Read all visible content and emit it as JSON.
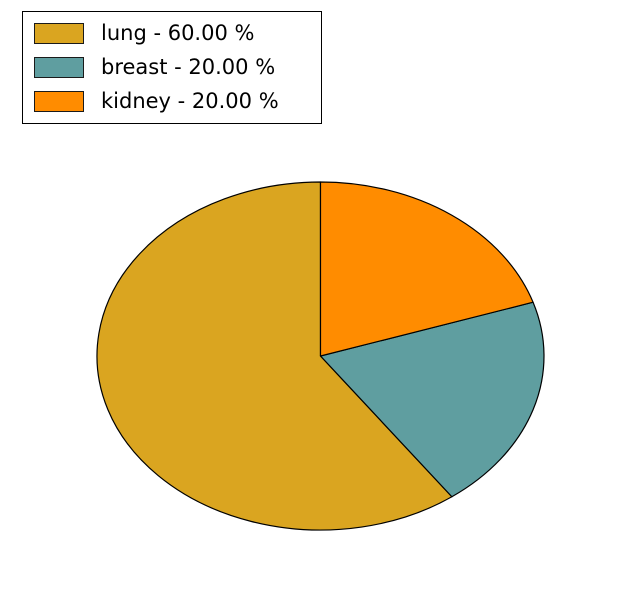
{
  "figure": {
    "background": "#FFFFFF"
  },
  "legend": {
    "position": "upper-left",
    "items": [
      {
        "label": "lung - 60.00 %",
        "color": "#DAA520"
      },
      {
        "label": "breast - 20.00 %",
        "color": "#5F9EA0"
      },
      {
        "label": "kidney - 20.00 %",
        "color": "#FF8C00"
      }
    ]
  },
  "chart_data": {
    "type": "pie",
    "title": "",
    "labels": [
      "lung",
      "breast",
      "kidney"
    ],
    "values": [
      60.0,
      20.0,
      20.0
    ],
    "unit": "%",
    "colors": [
      "#DAA520",
      "#5F9EA0",
      "#FF8C00"
    ],
    "edge_color": "#000000",
    "start_angle_deg": 90,
    "direction": "counterclockwise",
    "legend_entries": [
      "lung - 60.00 %",
      "breast - 20.00 %",
      "kidney - 20.00 %"
    ],
    "legend_position": "upper left"
  }
}
